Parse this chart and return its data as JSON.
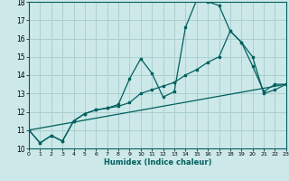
{
  "xlabel": "Humidex (Indice chaleur)",
  "xlim": [
    0,
    23
  ],
  "ylim": [
    10,
    18
  ],
  "yticks": [
    10,
    11,
    12,
    13,
    14,
    15,
    16,
    17,
    18
  ],
  "xticks": [
    0,
    1,
    2,
    3,
    4,
    5,
    6,
    7,
    8,
    9,
    10,
    11,
    12,
    13,
    14,
    15,
    16,
    17,
    18,
    19,
    20,
    21,
    22,
    23
  ],
  "bg_color": "#cce8e8",
  "grid_color": "#aad0d0",
  "line_color": "#006060",
  "line1_x": [
    0,
    1,
    2,
    3,
    4,
    5,
    6,
    7,
    8,
    9,
    10,
    11,
    12,
    13,
    14,
    15,
    16,
    17,
    18,
    19,
    20,
    21,
    22,
    23
  ],
  "line1_y": [
    11.0,
    10.3,
    10.7,
    10.4,
    11.5,
    11.9,
    12.1,
    12.2,
    12.4,
    13.8,
    14.9,
    14.1,
    12.8,
    13.1,
    16.6,
    18.1,
    18.0,
    17.8,
    16.4,
    15.8,
    14.5,
    13.1,
    13.5,
    13.5
  ],
  "line2_x": [
    0,
    1,
    2,
    3,
    4,
    5,
    6,
    7,
    8,
    9,
    10,
    11,
    12,
    13,
    14,
    15,
    16,
    17,
    18,
    19,
    20,
    21,
    22,
    23
  ],
  "line2_y": [
    11.0,
    10.3,
    10.7,
    10.4,
    11.5,
    11.9,
    12.1,
    12.2,
    12.3,
    12.5,
    13.0,
    13.2,
    13.4,
    13.6,
    14.0,
    14.3,
    14.7,
    15.0,
    16.4,
    15.8,
    15.0,
    13.0,
    13.2,
    13.5
  ],
  "line3_x": [
    0,
    23
  ],
  "line3_y": [
    11.0,
    13.5
  ]
}
